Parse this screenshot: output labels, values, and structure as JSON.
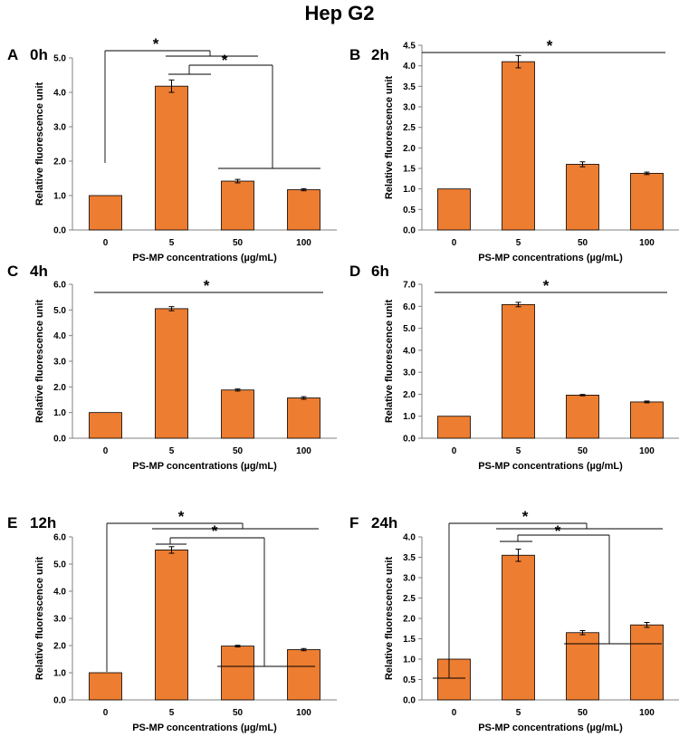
{
  "figure_title": "Hep G2",
  "colors": {
    "bar": "#ED7D31",
    "bar_stroke": "#000000",
    "axis": "#808080"
  },
  "chart_data": [
    {
      "type": "bar",
      "panel_letter": "A",
      "title": "0h",
      "categories": [
        "0",
        "5",
        "50",
        "100"
      ],
      "values": [
        1.0,
        4.18,
        1.42,
        1.17
      ],
      "errors": [
        0,
        0.18,
        0.05,
        0.03
      ],
      "xlabel": "PS-MP concentrations (µg/mL)",
      "ylabel": "Relative fluorescence unit",
      "ylim": [
        0,
        5
      ],
      "yticks": [
        "0.0",
        "1.0",
        "2.0",
        "3.0",
        "4.0",
        "5.0"
      ],
      "annotations": [
        "*",
        "*"
      ]
    },
    {
      "type": "bar",
      "panel_letter": "B",
      "title": "2h",
      "categories": [
        "0",
        "5",
        "50",
        "100"
      ],
      "values": [
        1.0,
        4.1,
        1.6,
        1.38
      ],
      "errors": [
        0,
        0.15,
        0.06,
        0.03
      ],
      "xlabel": "PS-MP concentrations (µg/mL)",
      "ylabel": "Relative fluorescence unit",
      "ylim": [
        0,
        4.5
      ],
      "yticks": [
        "0.0",
        "0.5",
        "1.0",
        "1.5",
        "2.0",
        "2.5",
        "3.0",
        "3.5",
        "4.0",
        "4.5"
      ],
      "annotations": [
        "*"
      ]
    },
    {
      "type": "bar",
      "panel_letter": "C",
      "title": "4h",
      "categories": [
        "0",
        "5",
        "50",
        "100"
      ],
      "values": [
        1.0,
        5.05,
        1.88,
        1.57
      ],
      "errors": [
        0,
        0.08,
        0.04,
        0.05
      ],
      "xlabel": "PS-MP concentrations (µg/mL)",
      "ylabel": "Relative fluorescence unit",
      "ylim": [
        0,
        6
      ],
      "yticks": [
        "0.0",
        "1.0",
        "2.0",
        "3.0",
        "4.0",
        "5.0",
        "6.0"
      ],
      "annotations": [
        "*"
      ]
    },
    {
      "type": "bar",
      "panel_letter": "D",
      "title": "6h",
      "categories": [
        "0",
        "5",
        "50",
        "100"
      ],
      "values": [
        1.0,
        6.08,
        1.96,
        1.65
      ],
      "errors": [
        0,
        0.1,
        0.03,
        0.04
      ],
      "xlabel": "PS-MP concentrations (µg/mL)",
      "ylabel": "Relative fluorescence unit",
      "ylim": [
        0,
        7
      ],
      "yticks": [
        "0.0",
        "1.0",
        "2.0",
        "3.0",
        "4.0",
        "5.0",
        "6.0",
        "7.0"
      ],
      "annotations": [
        "*"
      ]
    },
    {
      "type": "bar",
      "panel_letter": "E",
      "title": "12h",
      "categories": [
        "0",
        "5",
        "50",
        "100"
      ],
      "values": [
        1.0,
        5.52,
        1.98,
        1.85
      ],
      "errors": [
        0,
        0.12,
        0.03,
        0.04
      ],
      "xlabel": "PS-MP concentrations (µg/mL)",
      "ylabel": "Relative fluorescence unit",
      "ylim": [
        0,
        6
      ],
      "yticks": [
        "0.0",
        "1.0",
        "2.0",
        "3.0",
        "4.0",
        "5.0",
        "6.0"
      ],
      "annotations": [
        "*",
        "*"
      ]
    },
    {
      "type": "bar",
      "panel_letter": "F",
      "title": "24h",
      "categories": [
        "0",
        "5",
        "50",
        "100"
      ],
      "values": [
        1.0,
        3.55,
        1.65,
        1.84
      ],
      "errors": [
        0,
        0.15,
        0.05,
        0.06
      ],
      "xlabel": "PS-MP concentrations (µg/mL)",
      "ylabel": "Relative fluorescence unit",
      "ylim": [
        0,
        4
      ],
      "yticks": [
        "0.0",
        "0.5",
        "1.0",
        "1.5",
        "2.0",
        "2.5",
        "3.0",
        "3.5",
        "4.0"
      ],
      "annotations": [
        "*",
        "*"
      ]
    }
  ]
}
